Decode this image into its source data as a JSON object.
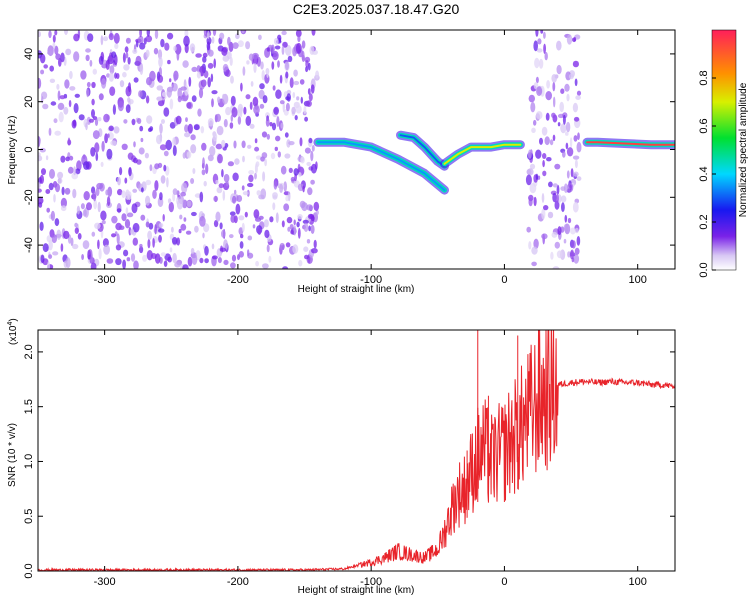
{
  "title": "C2E3.2025.037.18.47.G20",
  "chart_data": [
    {
      "type": "heatmap",
      "xlabel": "Height of straight line (km)",
      "ylabel": "Frequency (Hz)",
      "xlim": [
        -350,
        128
      ],
      "ylim": [
        -50,
        50
      ],
      "xticks": [
        -300,
        -200,
        -100,
        0,
        100
      ],
      "yticks": [
        -40,
        -20,
        0,
        20,
        40
      ],
      "grid": false,
      "colorbar": {
        "label": "Normalized spectral amplitude",
        "range": [
          0.0,
          1.0
        ],
        "ticks": [
          "0.0",
          "0.2",
          "0.4",
          "0.6",
          "0.8"
        ]
      },
      "noise_regions_km": [
        [
          -350,
          -140
        ],
        [
          18,
          56
        ]
      ],
      "signal_ridges": [
        {
          "x": [
            -140,
            -120,
            -100,
            -80,
            -60,
            -45
          ],
          "y": [
            3,
            3,
            1,
            -4,
            -10,
            -17
          ],
          "amplitude": 0.35
        },
        {
          "x": [
            -78,
            -68,
            -60,
            -55,
            -50,
            -45
          ],
          "y": [
            6,
            5,
            1,
            -2,
            -5,
            -7
          ],
          "amplitude": 0.3
        },
        {
          "x": [
            -45,
            -35,
            -25,
            -10,
            0,
            12
          ],
          "y": [
            -6,
            -2,
            1,
            1,
            2,
            2
          ],
          "amplitude": 0.7
        },
        {
          "x": [
            62,
            70,
            90,
            110,
            128
          ],
          "y": [
            3,
            3,
            2.5,
            2,
            2
          ],
          "amplitude": 0.95
        }
      ]
    },
    {
      "type": "line",
      "xlabel": "Height of straight line (km)",
      "ylabel": "SNR (10 * v/v)",
      "yscale_label": "(x10",
      "yscale_exp": "4",
      "xlim": [
        -350,
        128
      ],
      "ylim": [
        0,
        2.2
      ],
      "xticks": [
        -300,
        -200,
        -100,
        0,
        100
      ],
      "yticks": [
        "0.0",
        "0.5",
        "1.0",
        "1.5",
        "2.0"
      ],
      "grid": false,
      "color": "#e8242a",
      "series": [
        {
          "x": [
            -350,
            -300,
            -250,
            -200,
            -150,
            -120,
            -100,
            -90,
            -80,
            -70,
            -60,
            -50,
            -45,
            -40,
            -35,
            -30,
            -25,
            -20,
            -15,
            -10,
            -5,
            0,
            5,
            10,
            15,
            20,
            25,
            30,
            35,
            40,
            50,
            60,
            70,
            80,
            90,
            100,
            110,
            120,
            128
          ],
          "values": [
            0.01,
            0.01,
            0.01,
            0.01,
            0.01,
            0.02,
            0.08,
            0.12,
            0.18,
            0.15,
            0.12,
            0.2,
            0.35,
            0.55,
            0.7,
            0.75,
            0.9,
            1.05,
            1.1,
            1.0,
            1.05,
            1.1,
            1.2,
            1.25,
            1.35,
            1.45,
            1.55,
            1.6,
            1.65,
            1.7,
            1.72,
            1.73,
            1.72,
            1.73,
            1.72,
            1.72,
            1.7,
            1.7,
            1.68
          ]
        }
      ],
      "spikes": [
        {
          "x": -20,
          "value": 2.2
        },
        {
          "x": 10,
          "value": 2.15
        },
        {
          "x": -28,
          "value": 1.1
        },
        {
          "x": -12,
          "value": 1.6
        }
      ]
    }
  ]
}
